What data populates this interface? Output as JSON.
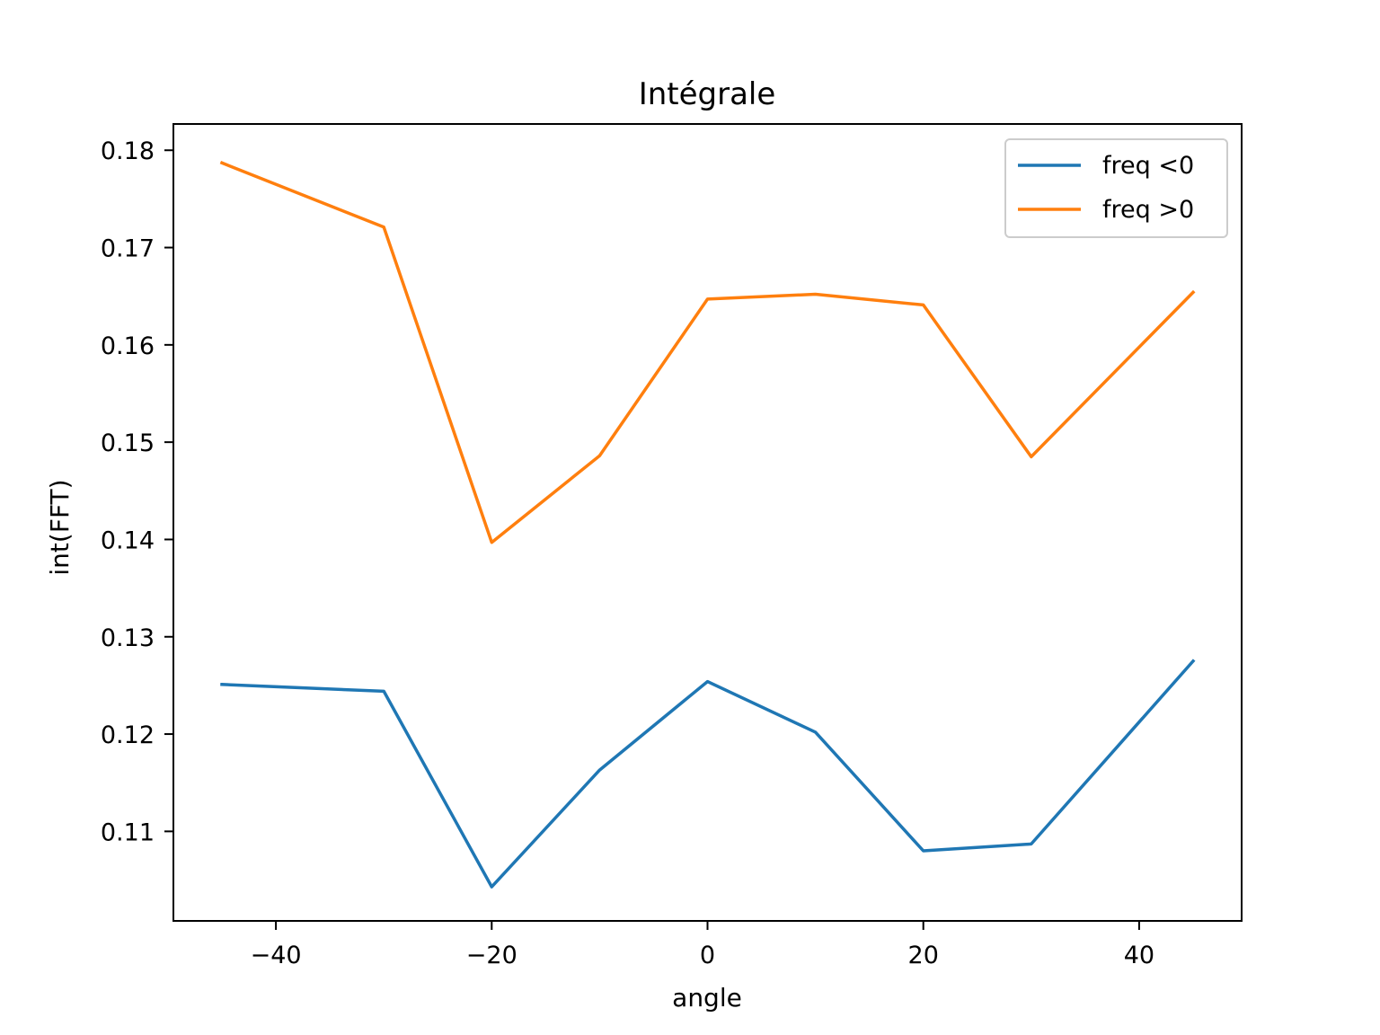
{
  "chart_data": {
    "type": "line",
    "title": "Intégrale",
    "xlabel": "angle",
    "ylabel": "int(FFT)",
    "xlim": [
      -49.5,
      49.5
    ],
    "ylim": [
      0.1008,
      0.1827
    ],
    "x": [
      -45,
      -30,
      -20,
      -10,
      0,
      10,
      20,
      30,
      45
    ],
    "xticks": [
      -40,
      -20,
      0,
      20,
      40
    ],
    "xtick_labels": [
      "−40",
      "−20",
      "0",
      "20",
      "40"
    ],
    "yticks": [
      0.11,
      0.12,
      0.13,
      0.14,
      0.15,
      0.16,
      0.17,
      0.18
    ],
    "ytick_labels": [
      "0.11",
      "0.12",
      "0.13",
      "0.14",
      "0.15",
      "0.16",
      "0.17",
      "0.18"
    ],
    "grid": false,
    "legend_position": "top-right",
    "series": [
      {
        "name": "freq <0",
        "color": "#1f77b4",
        "values": [
          0.1251,
          0.1244,
          0.1043,
          0.1163,
          0.1254,
          0.1202,
          0.108,
          0.1087,
          0.1275
        ]
      },
      {
        "name": "freq >0",
        "color": "#ff7f0e",
        "values": [
          0.1787,
          0.1721,
          0.1397,
          0.1486,
          0.1647,
          0.1652,
          0.1641,
          0.1485,
          0.1654
        ]
      }
    ]
  }
}
